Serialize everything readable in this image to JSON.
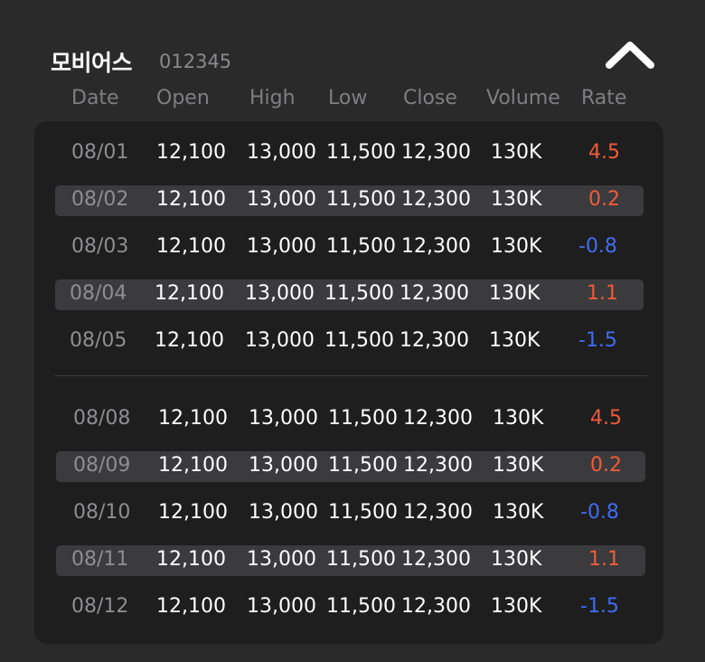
{
  "header": {
    "name": "모비어스",
    "code": "012345"
  },
  "columns": [
    "Date",
    "Open",
    "High",
    "Low",
    "Close",
    "Volume",
    "Rate"
  ],
  "colors": {
    "up": "#f05a3a",
    "down": "#3f6cf0"
  },
  "rows": [
    {
      "date": "08/01",
      "open": "12,100",
      "high": "13,000",
      "low": "11,500",
      "close": "12,300",
      "volume": "130K",
      "rate": "4.5",
      "dir": "up"
    },
    {
      "date": "08/02",
      "open": "12,100",
      "high": "13,000",
      "low": "11,500",
      "close": "12,300",
      "volume": "130K",
      "rate": "0.2",
      "dir": "up"
    },
    {
      "date": "08/03",
      "open": "12,100",
      "high": "13,000",
      "low": "11,500",
      "close": "12,300",
      "volume": "130K",
      "rate": "-0.8",
      "dir": "down"
    },
    {
      "date": "08/04",
      "open": "12,100",
      "high": "13,000",
      "low": "11,500",
      "close": "12,300",
      "volume": "130K",
      "rate": "1.1",
      "dir": "up"
    },
    {
      "date": "08/05",
      "open": "12,100",
      "high": "13,000",
      "low": "11,500",
      "close": "12,300",
      "volume": "130K",
      "rate": "-1.5",
      "dir": "down"
    },
    {
      "date": "08/08",
      "open": "12,100",
      "high": "13,000",
      "low": "11,500",
      "close": "12,300",
      "volume": "130K",
      "rate": "4.5",
      "dir": "up"
    },
    {
      "date": "08/09",
      "open": "12,100",
      "high": "13,000",
      "low": "11,500",
      "close": "12,300",
      "volume": "130K",
      "rate": "0.2",
      "dir": "up"
    },
    {
      "date": "08/10",
      "open": "12,100",
      "high": "13,000",
      "low": "11,500",
      "close": "12,300",
      "volume": "130K",
      "rate": "-0.8",
      "dir": "down"
    },
    {
      "date": "08/11",
      "open": "12,100",
      "high": "13,000",
      "low": "11,500",
      "close": "12,300",
      "volume": "130K",
      "rate": "1.1",
      "dir": "up"
    },
    {
      "date": "08/12",
      "open": "12,100",
      "high": "13,000",
      "low": "11,500",
      "close": "12,300",
      "volume": "130K",
      "rate": "-1.5",
      "dir": "down"
    }
  ]
}
